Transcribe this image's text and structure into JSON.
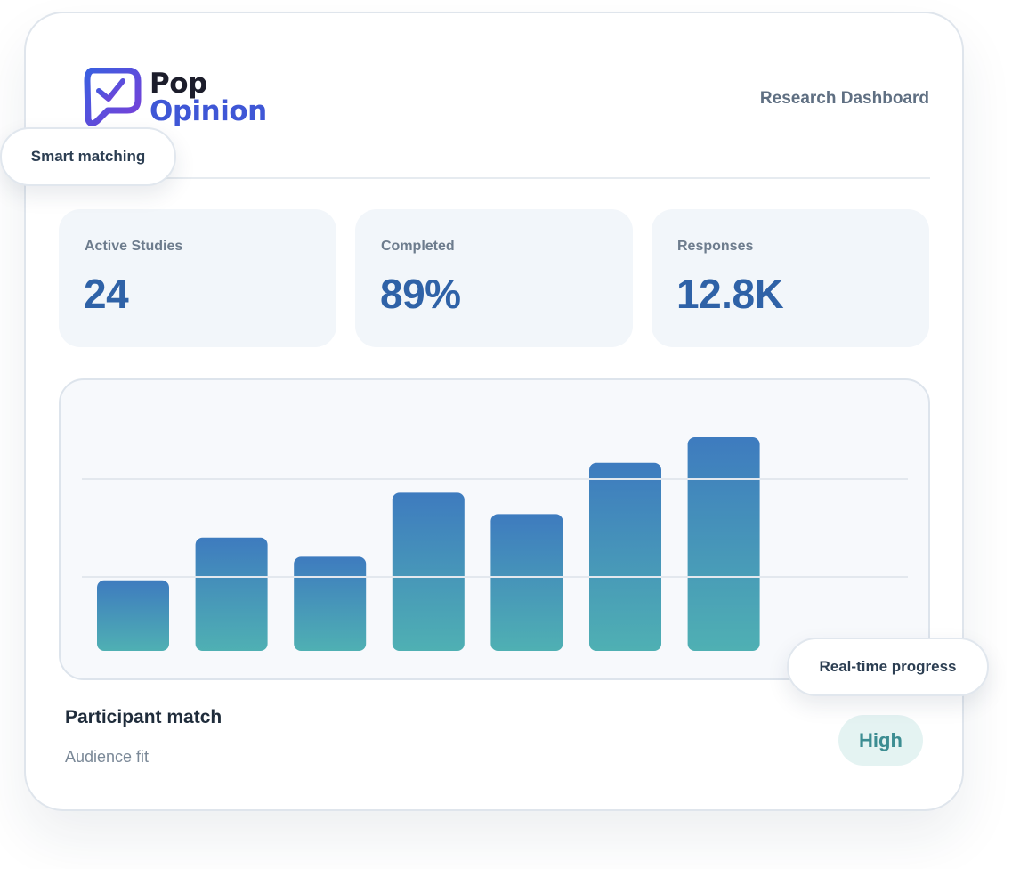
{
  "brand": {
    "line1": "Pop",
    "line2": "Opinion"
  },
  "header": {
    "title": "Research Dashboard"
  },
  "floating": {
    "smart_matching": "Smart matching",
    "real_time": "Real-time progress"
  },
  "stats": [
    {
      "label": "Active Studies",
      "value": "24"
    },
    {
      "label": "Completed",
      "value": "89%"
    },
    {
      "label": "Responses",
      "value": "12.8K"
    }
  ],
  "colors": {
    "accent": "#2f62a7",
    "brand_blue": "#3f57d6",
    "bar_top": "#3e7bbf",
    "bar_bottom": "#4fb0b3",
    "badge_bg": "#e4f3f2",
    "badge_text": "#3c8d92"
  },
  "chart_data": {
    "type": "bar",
    "values": [
      0.33,
      0.53,
      0.44,
      0.74,
      0.64,
      0.88,
      1.0
    ],
    "ylim": [
      0,
      1.0
    ],
    "grid": true
  },
  "match": {
    "title": "Participant match",
    "subtitle": "Audience fit",
    "level": "High"
  }
}
